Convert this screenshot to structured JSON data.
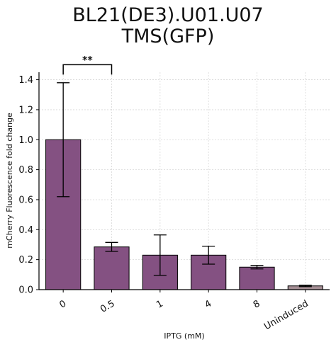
{
  "chart_data": {
    "type": "bar",
    "title_lines": [
      "BL21(DE3).U01.U07",
      "TMS(GFP)"
    ],
    "xlabel": "IPTG (mM)",
    "ylabel": "mCherry Fluorescence fold change",
    "categories": [
      "0",
      "0.5",
      "1",
      "4",
      "8",
      "Uninduced"
    ],
    "values": [
      1.0,
      0.285,
      0.23,
      0.23,
      0.15,
      0.025
    ],
    "errors": [
      0.38,
      0.03,
      0.135,
      0.06,
      0.012,
      0.005
    ],
    "ylim": [
      0,
      1.45
    ],
    "yticks": [
      "0.0",
      "0.2",
      "0.4",
      "0.6",
      "0.8",
      "1.0",
      "1.2",
      "1.4"
    ],
    "grid": true,
    "colors": [
      "#845182",
      "#845182",
      "#845182",
      "#845182",
      "#845182",
      "#a48e94"
    ],
    "annotation": {
      "text": "**",
      "from_category": "0",
      "to_category": "0.5",
      "y": 1.5
    }
  }
}
